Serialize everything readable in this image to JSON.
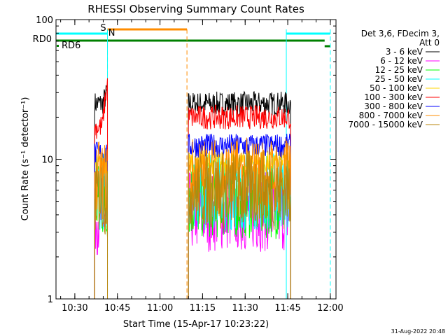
{
  "chart_data": {
    "type": "line",
    "title": "RHESSI Observing Summary Count Rates",
    "xlabel": "Start Time (15-Apr-17 10:23:22)",
    "ylabel": "Count Rate (s⁻¹ detector⁻¹)",
    "y_scale": "log",
    "ylim": [
      1,
      100
    ],
    "xlim_minutes": [
      "10:23:22",
      "12:02:00"
    ],
    "x_ticks": [
      "10:30",
      "10:45",
      "11:00",
      "11:15",
      "11:30",
      "11:45",
      "12:00"
    ],
    "y_ticks": [
      "1",
      "10",
      "100"
    ],
    "legend_header": [
      "Det 3,6, FDecim 3,",
      "Att 0"
    ],
    "legend_position": "right",
    "series": [
      {
        "name": "3 - 6 keV",
        "color": "#000000",
        "segments": [
          {
            "start": "10:37:00",
            "end": "10:41:30",
            "base": 25,
            "end_rise": 30
          },
          {
            "start": "11:10:00",
            "end": "11:46:00",
            "base": 25
          }
        ]
      },
      {
        "name": "6 - 12 keV",
        "color": "#ff00ff",
        "segments": [
          {
            "start": "10:37:00",
            "end": "10:41:30",
            "base": 4
          },
          {
            "start": "11:10:00",
            "end": "11:46:00",
            "base": 4.2
          }
        ]
      },
      {
        "name": "12 - 25 keV",
        "color": "#00ff00",
        "segments": [
          {
            "start": "10:37:00",
            "end": "10:41:30",
            "base": 5
          },
          {
            "start": "11:10:00",
            "end": "11:46:00",
            "base": 5.2
          }
        ]
      },
      {
        "name": "25 - 50 keV",
        "color": "#00ffff",
        "segments": [
          {
            "start": "10:37:00",
            "end": "10:41:30",
            "base": 6
          },
          {
            "start": "11:10:00",
            "end": "11:46:00",
            "base": 6
          }
        ]
      },
      {
        "name": "50 - 100 keV",
        "color": "#ffd700",
        "segments": [
          {
            "start": "10:37:00",
            "end": "10:41:30",
            "base": 9
          },
          {
            "start": "11:10:00",
            "end": "11:46:00",
            "base": 9.5
          }
        ]
      },
      {
        "name": "100 - 300 keV",
        "color": "#ff0000",
        "segments": [
          {
            "start": "10:37:00",
            "end": "10:41:30",
            "base": 17,
            "end_rise": 35
          },
          {
            "start": "11:10:00",
            "end": "11:46:00",
            "base": 20
          }
        ]
      },
      {
        "name": "300 - 800 keV",
        "color": "#0000ff",
        "segments": [
          {
            "start": "10:37:00",
            "end": "10:41:30",
            "base": 11
          },
          {
            "start": "11:10:00",
            "end": "11:46:00",
            "base": 12.5
          }
        ]
      },
      {
        "name": "800 - 7000 keV",
        "color": "#ff8c00",
        "segments": [
          {
            "start": "10:37:00",
            "end": "10:41:30",
            "base": 7
          },
          {
            "start": "11:10:00",
            "end": "11:46:00",
            "base": 7.5
          }
        ]
      },
      {
        "name": "7000 - 15000 keV",
        "color": "#b8860b",
        "segments": [
          {
            "start": "10:37:00",
            "end": "10:41:30",
            "base": 5.5
          },
          {
            "start": "11:10:00",
            "end": "11:46:00",
            "base": 6
          }
        ]
      }
    ],
    "flag_bars": [
      {
        "label": "S",
        "color": "#ff8c00",
        "start": "10:41:30",
        "end": "11:09:30"
      },
      {
        "label": "N",
        "color": "#00ffff",
        "start": "10:23:22",
        "end": "10:41:30"
      },
      {
        "label": "N",
        "color": "#00ffff",
        "start": "11:44:30",
        "end": "12:00:00"
      },
      {
        "label": "RD0",
        "color": "#008000",
        "start": "10:23:22",
        "end": "11:58:00"
      },
      {
        "label": "RD6",
        "color": "#008000",
        "start": "11:58:00",
        "end": "12:00:00"
      }
    ],
    "vlines": [
      {
        "time": "10:41:30",
        "color": "#ff8c00",
        "style": "dashed"
      },
      {
        "time": "11:09:30",
        "color": "#ff8c00",
        "style": "dashed"
      },
      {
        "time": "10:41:30",
        "color": "#00ffff",
        "style": "solid"
      },
      {
        "time": "11:44:30",
        "color": "#00ffff",
        "style": "solid"
      },
      {
        "time": "12:00:00",
        "color": "#00ffff",
        "style": "dashed"
      }
    ],
    "rd_labels": [
      "RD0",
      "RD6"
    ],
    "grid": false
  },
  "footer": {
    "timestamp": "31-Aug-2022 20:48"
  }
}
